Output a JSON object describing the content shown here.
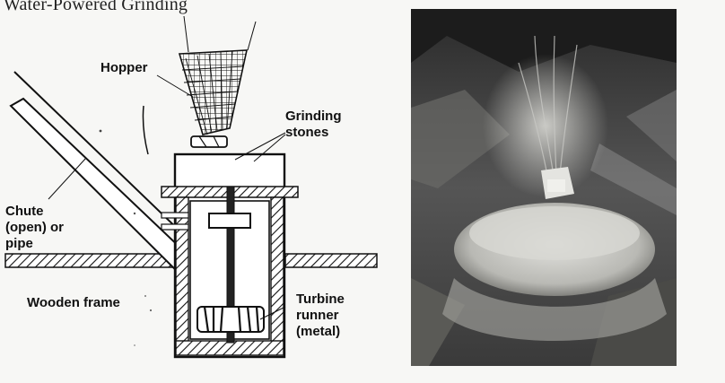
{
  "caption": "Water-Powered Grinding",
  "labels": {
    "hopper": "Hopper",
    "grinding_stones_1": "Grinding",
    "grinding_stones_2": "stones",
    "chute_1": "Chute",
    "chute_2": "(open) or",
    "chute_3": "pipe",
    "wooden_frame": "Wooden frame",
    "turbine_1": "Turbine",
    "turbine_2": "runner",
    "turbine_3": "(metal)"
  }
}
